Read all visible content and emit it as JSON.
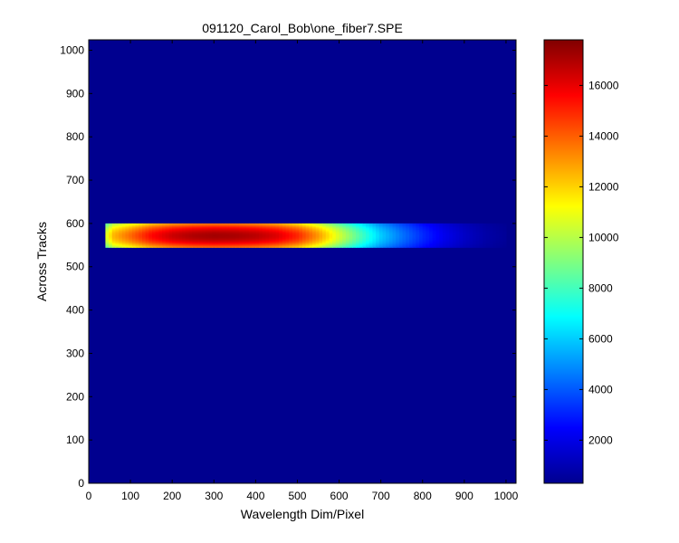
{
  "chart_data": {
    "type": "heatmap",
    "title": "091120_Carol_Bob\\one_fiber7.SPE",
    "xlabel": "Wavelength Dim/Pixel",
    "ylabel": "Across Tracks",
    "xlim": [
      0,
      1024
    ],
    "ylim": [
      0,
      1024
    ],
    "xticks": [
      0,
      100,
      200,
      300,
      400,
      500,
      600,
      700,
      800,
      900,
      1000
    ],
    "yticks": [
      0,
      100,
      200,
      300,
      400,
      500,
      600,
      700,
      800,
      900,
      1000
    ],
    "colormap": "jet",
    "clim": [
      300,
      17800
    ],
    "colorbar_ticks": [
      2000,
      4000,
      6000,
      8000,
      10000,
      12000,
      14000,
      16000
    ],
    "background_value": 300,
    "band": {
      "x_range": [
        40,
        1000
      ],
      "y_range": [
        545,
        600
      ],
      "profile_x": [
        40,
        60,
        100,
        150,
        200,
        250,
        300,
        350,
        400,
        450,
        500,
        550,
        600,
        650,
        700,
        750,
        800,
        850,
        900,
        950,
        1000
      ],
      "profile_values": [
        10500,
        12500,
        13800,
        15500,
        16500,
        17000,
        17200,
        17100,
        16800,
        16200,
        15000,
        13000,
        10500,
        8200,
        6000,
        4500,
        3200,
        2200,
        1500,
        1000,
        700
      ]
    }
  }
}
